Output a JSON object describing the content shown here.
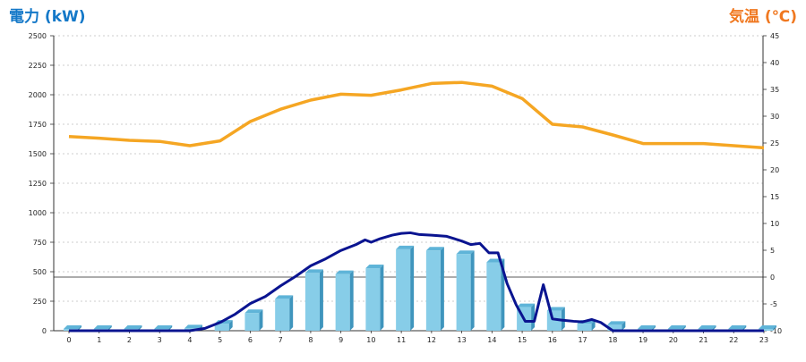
{
  "chart_data": {
    "type": "bar+line",
    "left_axis_label": "電力 (kW)",
    "right_axis_label": "気温 (℃)",
    "left_ylim": [
      0,
      2500
    ],
    "right_ylim": [
      -10,
      45
    ],
    "left_ticks": [
      0,
      250,
      500,
      750,
      1000,
      1250,
      1500,
      1750,
      2000,
      2250,
      2500
    ],
    "right_ticks": [
      -10,
      -5,
      0,
      5,
      10,
      15,
      20,
      25,
      30,
      35,
      40,
      45
    ],
    "grid": true,
    "categories": [
      "0",
      "1",
      "2",
      "3",
      "4",
      "5",
      "6",
      "7",
      "8",
      "9",
      "10",
      "11",
      "12",
      "13",
      "14",
      "15",
      "16",
      "17",
      "18",
      "19",
      "20",
      "21",
      "22",
      "23"
    ],
    "series": [
      {
        "kind": "bar",
        "axis": "left",
        "color": "#87cde8",
        "values": [
          15,
          15,
          15,
          15,
          20,
          60,
          150,
          270,
          490,
          480,
          530,
          690,
          680,
          650,
          580,
          200,
          170,
          60,
          50,
          15,
          15,
          15,
          15,
          15
        ]
      },
      {
        "kind": "line",
        "axis": "right",
        "color": "#f5a623",
        "values": [
          26.2,
          25.9,
          25.5,
          25.3,
          24.5,
          25.4,
          29.0,
          31.3,
          33.0,
          34.1,
          33.9,
          34.9,
          36.1,
          36.3,
          35.6,
          33.3,
          28.5,
          28.0,
          26.5,
          24.9,
          24.9,
          24.9,
          24.5,
          24.1
        ]
      },
      {
        "kind": "line",
        "axis": "left",
        "color": "#0a1490",
        "points": [
          [
            0,
            0
          ],
          [
            1,
            0
          ],
          [
            2,
            0
          ],
          [
            3,
            0
          ],
          [
            4,
            0
          ],
          [
            4.5,
            20
          ],
          [
            5,
            70
          ],
          [
            5.5,
            140
          ],
          [
            6,
            230
          ],
          [
            6.5,
            290
          ],
          [
            7,
            380
          ],
          [
            7.5,
            460
          ],
          [
            8,
            550
          ],
          [
            8.5,
            610
          ],
          [
            9,
            680
          ],
          [
            9.5,
            730
          ],
          [
            9.8,
            770
          ],
          [
            10,
            750
          ],
          [
            10.3,
            780
          ],
          [
            10.7,
            810
          ],
          [
            11,
            825
          ],
          [
            11.3,
            830
          ],
          [
            11.6,
            815
          ],
          [
            12,
            810
          ],
          [
            12.5,
            800
          ],
          [
            13,
            760
          ],
          [
            13.3,
            730
          ],
          [
            13.6,
            740
          ],
          [
            13.9,
            660
          ],
          [
            14.2,
            660
          ],
          [
            14.5,
            400
          ],
          [
            14.8,
            220
          ],
          [
            15.1,
            80
          ],
          [
            15.4,
            80
          ],
          [
            15.7,
            390
          ],
          [
            16,
            100
          ],
          [
            16.3,
            90
          ],
          [
            16.7,
            80
          ],
          [
            17,
            75
          ],
          [
            17.3,
            95
          ],
          [
            17.6,
            70
          ],
          [
            18,
            0
          ],
          [
            18.5,
            0
          ],
          [
            19,
            0
          ],
          [
            20,
            0
          ],
          [
            21,
            0
          ],
          [
            22,
            0
          ],
          [
            23,
            0
          ]
        ]
      }
    ]
  }
}
